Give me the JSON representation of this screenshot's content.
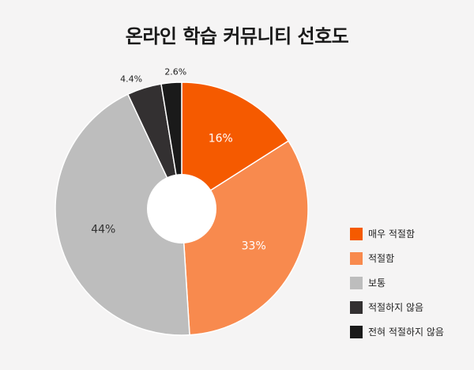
{
  "chart_data": {
    "type": "pie",
    "donut": true,
    "title": "온라인 학습 커뮤니티 선호도",
    "categories": [
      "매우 적절함",
      "적절함",
      "보통",
      "적절하지 않음",
      "전혀 적절하지 않음"
    ],
    "values": [
      16,
      33,
      44,
      4.4,
      2.6
    ],
    "data_labels": [
      "16%",
      "33%",
      "44%",
      "4.4%",
      "2.6%"
    ],
    "colors": [
      "#f55a00",
      "#f88a4e",
      "#bdbdbd",
      "#333031",
      "#1a1a1a"
    ],
    "legend_position": "right-bottom"
  }
}
